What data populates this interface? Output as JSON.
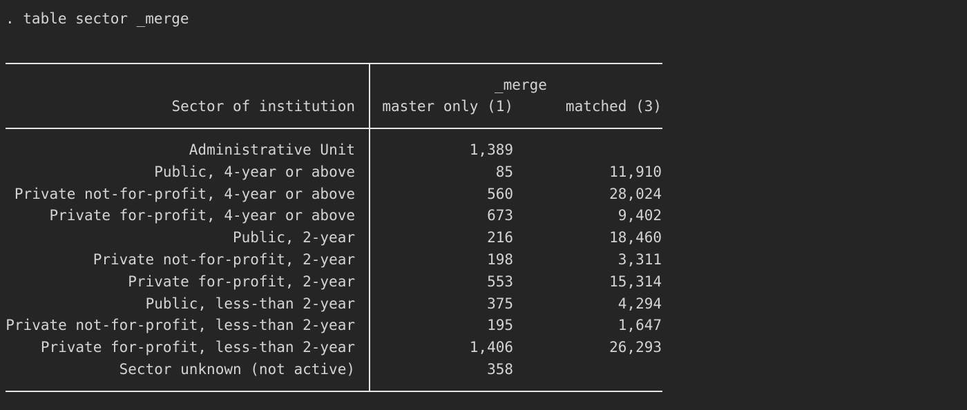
{
  "command": ". table sector _merge",
  "table": {
    "group_header": "_merge",
    "row_header": "Sector of institution",
    "columns": [
      "master only (1)",
      "matched (3)"
    ],
    "rows": [
      {
        "label": "Administrative Unit",
        "master_only": "1,389",
        "matched": ""
      },
      {
        "label": "Public, 4-year or above",
        "master_only": "85",
        "matched": "11,910"
      },
      {
        "label": "Private not-for-profit, 4-year or above",
        "master_only": "560",
        "matched": "28,024"
      },
      {
        "label": "Private for-profit, 4-year or above",
        "master_only": "673",
        "matched": "9,402"
      },
      {
        "label": "Public, 2-year",
        "master_only": "216",
        "matched": "18,460"
      },
      {
        "label": "Private not-for-profit, 2-year",
        "master_only": "198",
        "matched": "3,311"
      },
      {
        "label": "Private for-profit, 2-year",
        "master_only": "553",
        "matched": "15,314"
      },
      {
        "label": "Public, less-than 2-year",
        "master_only": "375",
        "matched": "4,294"
      },
      {
        "label": "Private not-for-profit, less-than 2-year",
        "master_only": "195",
        "matched": "1,647"
      },
      {
        "label": "Private for-profit, less-than 2-year",
        "master_only": "1,406",
        "matched": "26,293"
      },
      {
        "label": "Sector unknown (not active)",
        "master_only": "358",
        "matched": ""
      }
    ]
  },
  "colors": {
    "background": "#252526",
    "text": "#d4d4d4",
    "rule": "#e6e6e6"
  }
}
